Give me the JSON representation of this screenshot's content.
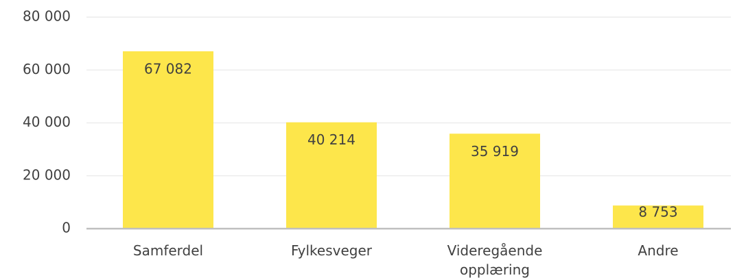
{
  "chart_data": {
    "type": "bar",
    "categories": [
      "Samferdel",
      "Fylkesveger",
      "Videregående opplæring",
      "Andre"
    ],
    "values": [
      67082,
      40214,
      35919,
      8753
    ],
    "value_labels": [
      "67 082",
      "40 214",
      "35 919",
      "8 753"
    ],
    "color": "#fde64b",
    "ylim": [
      0,
      80000
    ],
    "yticks": [
      0,
      {
        "value": 20000,
        "label": "20 000"
      },
      {
        "value": 40000,
        "label": "40 000"
      },
      {
        "value": 60000,
        "label": "60 000"
      },
      {
        "value": 80000,
        "label": "80 000"
      }
    ],
    "grid": true
  }
}
